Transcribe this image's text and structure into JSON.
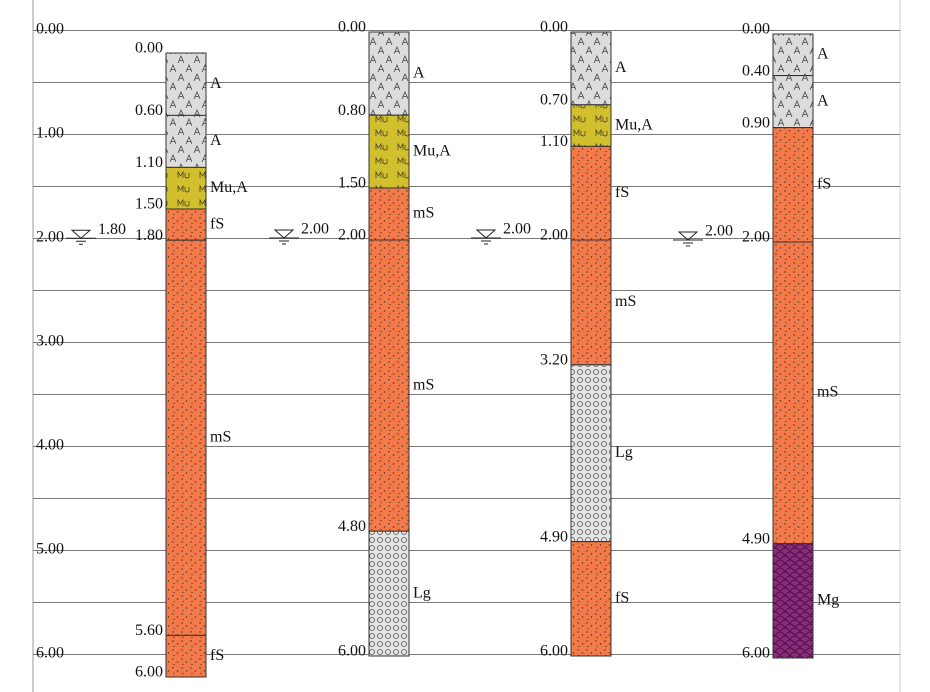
{
  "axis": {
    "labels": [
      "0.00",
      "1.00",
      "2.00",
      "3.00",
      "4.00",
      "5.00",
      "6.00"
    ]
  },
  "boreholes": [
    {
      "water_level": "1.80",
      "depths": [
        "0.00",
        "0.60",
        "1.10",
        "1.50",
        "1.80",
        "5.60",
        "6.00"
      ],
      "layers": [
        {
          "label": "A"
        },
        {
          "label": "A"
        },
        {
          "label": "Mu,A"
        },
        {
          "label": "fS"
        },
        {
          "label": "mS"
        },
        {
          "label": "fS"
        }
      ]
    },
    {
      "water_level": "2.00",
      "depths": [
        "0.00",
        "0.80",
        "1.50",
        "2.00",
        "4.80",
        "6.00"
      ],
      "layers": [
        {
          "label": "A"
        },
        {
          "label": "Mu,A"
        },
        {
          "label": "mS"
        },
        {
          "label": "mS"
        },
        {
          "label": "Lg"
        }
      ]
    },
    {
      "water_level": "2.00",
      "depths": [
        "0.00",
        "0.70",
        "1.10",
        "2.00",
        "3.20",
        "4.90",
        "6.00"
      ],
      "layers": [
        {
          "label": "A"
        },
        {
          "label": "Mu,A"
        },
        {
          "label": "fS"
        },
        {
          "label": "mS"
        },
        {
          "label": "Lg"
        },
        {
          "label": "fS"
        }
      ]
    },
    {
      "water_level": "2.00",
      "depths": [
        "0.00",
        "0.40",
        "0.90",
        "2.00",
        "4.90",
        "6.00"
      ],
      "layers": [
        {
          "label": "A"
        },
        {
          "label": "A"
        },
        {
          "label": "fS"
        },
        {
          "label": "mS"
        },
        {
          "label": "Mg"
        }
      ]
    }
  ]
}
